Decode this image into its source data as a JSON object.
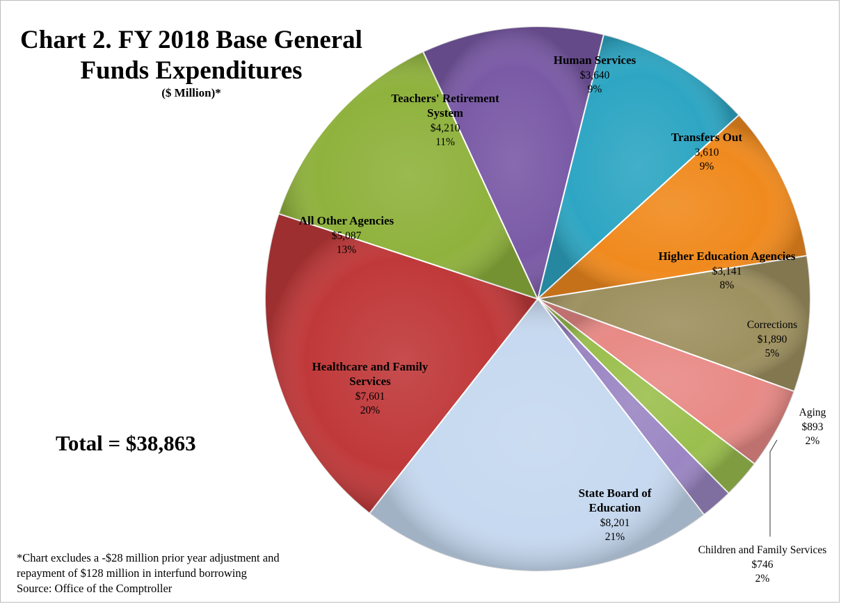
{
  "chart_data": {
    "type": "pie",
    "title": "Chart 2.  FY 2018 Base General Funds Expenditures",
    "subtitle": "($ Million)*",
    "slices": [
      {
        "name": "Human Services",
        "value": "$3,640",
        "amount": 3640,
        "percent": "9%",
        "color": "#2ea6c3",
        "bold": true
      },
      {
        "name": "Transfers Out",
        "value": "3,610",
        "amount": 3610,
        "percent": "9%",
        "color": "#f08a1e",
        "bold": true
      },
      {
        "name": "Higher Education Agencies",
        "value": "$3,141",
        "amount": 3141,
        "percent": "8%",
        "color": "#9e9160",
        "bold": true
      },
      {
        "name": "Corrections",
        "value": "$1,890",
        "amount": 1890,
        "percent": "5%",
        "color": "#e88a86",
        "bold": false
      },
      {
        "name": "Aging",
        "value": "$893",
        "amount": 893,
        "percent": "2%",
        "color": "#9bbf4e",
        "bold": false
      },
      {
        "name": "Children and Family Services",
        "value": "$746",
        "amount": 746,
        "percent": "2%",
        "color": "#9b86c3",
        "bold": false
      },
      {
        "name": "State Board of Education",
        "value": "$8,201",
        "amount": 8201,
        "percent": "21%",
        "color": "#c6d9f0",
        "bold": true
      },
      {
        "name": "Healthcare and Family Services",
        "value": "$7,601",
        "amount": 7601,
        "percent": "20%",
        "color": "#c0393a",
        "bold": true
      },
      {
        "name": "All Other Agencies",
        "value": "$5,087",
        "amount": 5087,
        "percent": "13%",
        "color": "#8fb23d",
        "bold": true
      },
      {
        "name": "Teachers' Retirement System",
        "value": "$4,210",
        "amount": 4210,
        "percent": "11%",
        "color": "#7a5aa6",
        "bold": true
      }
    ],
    "total_label": "Total = $38,863",
    "footnotes": [
      "*Chart excludes a -$28 million prior year adjustment and",
      "repayment of $128 million in interfund borrowing",
      "Source: Office of the Comptroller"
    ]
  }
}
